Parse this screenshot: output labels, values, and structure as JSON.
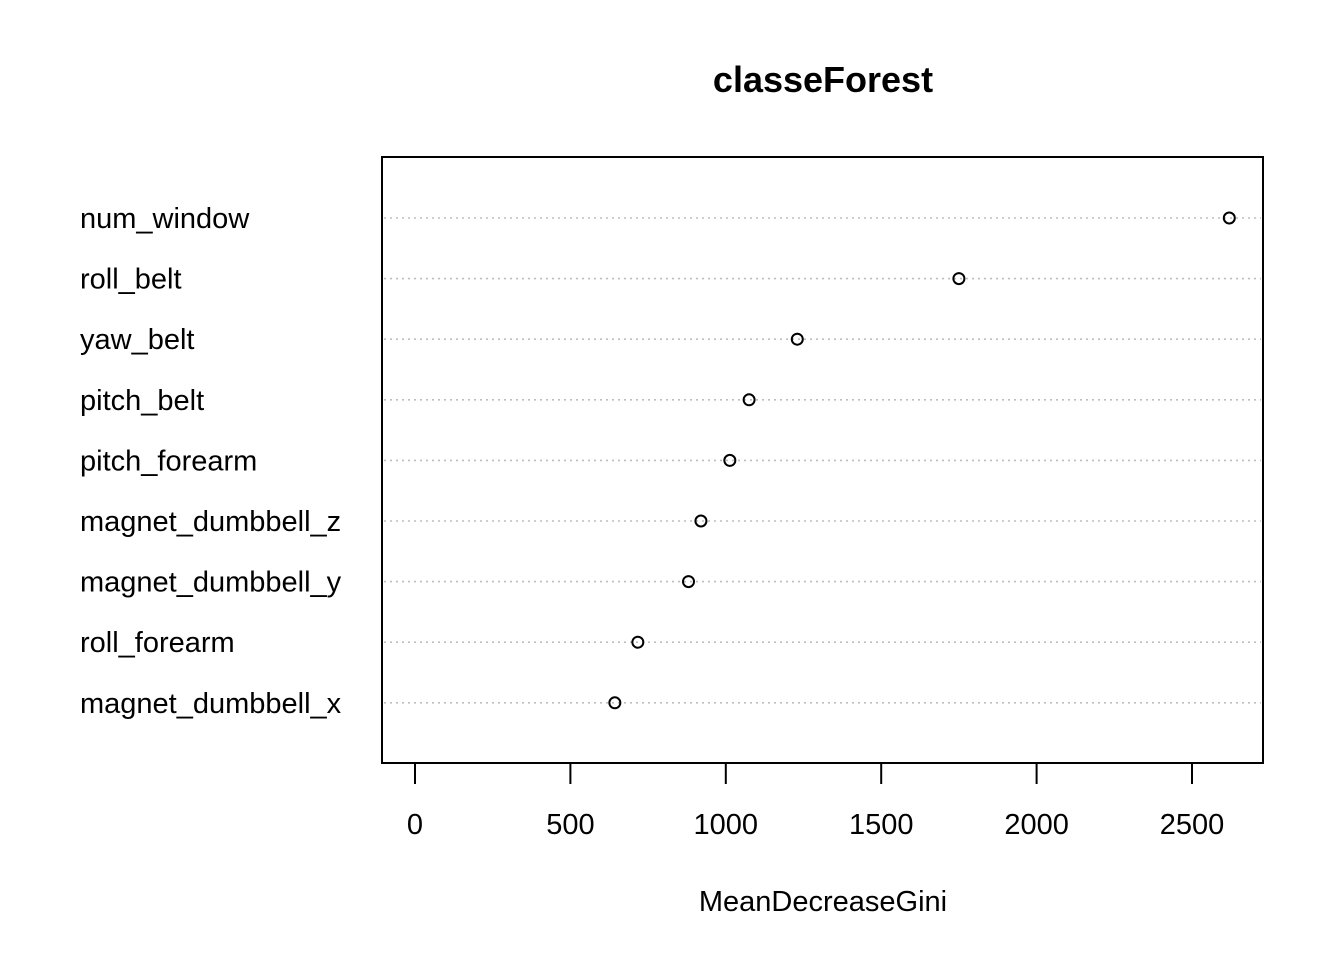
{
  "chart_data": {
    "type": "scatter",
    "title": "classeForest",
    "xlabel": "MeanDecreaseGini",
    "ylabel": "",
    "xlim": [
      -110,
      2730
    ],
    "x_ticks": [
      0,
      500,
      1000,
      1500,
      2000,
      2500
    ],
    "x_tick_labels": [
      "0",
      "500",
      "1000",
      "1500",
      "2000",
      "2500"
    ],
    "grid": "horizontal dotted guide lines",
    "categories": [
      "num_window",
      "roll_belt",
      "yaw_belt",
      "pitch_belt",
      "pitch_forearm",
      "magnet_dumbbell_z",
      "magnet_dumbbell_y",
      "roll_forearm",
      "magnet_dumbbell_x"
    ],
    "values": [
      2620,
      1750,
      1230,
      1075,
      1013,
      920,
      880,
      717,
      643
    ],
    "colors": {
      "point": "#000000",
      "guide": "#bebebe",
      "box": "#000000"
    }
  }
}
